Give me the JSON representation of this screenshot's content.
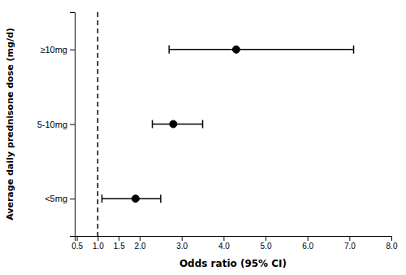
{
  "chart_data": {
    "type": "forest",
    "xlabel": "Odds ratio (95% CI)",
    "ylabel": "Average daily prednisone dose (mg/d)",
    "categories": [
      "≥10mg",
      "5-10mg",
      "<5mg"
    ],
    "values": [
      4.3,
      2.8,
      1.9
    ],
    "ci_lower": [
      2.7,
      2.3,
      1.1
    ],
    "ci_upper": [
      7.1,
      3.5,
      2.5
    ],
    "reference_line": 1.0,
    "color": "#000000",
    "xlim": [
      0.45,
      8.0
    ],
    "xticks": [
      0.5,
      {
        "value": 1.0,
        "label": "1.0"
      },
      1.5,
      {
        "value": 2.0,
        "label": "2.0"
      },
      {
        "value": 3.0,
        "label": "3.0"
      },
      {
        "value": 4.0,
        "label": "4.0"
      },
      {
        "value": 5.0,
        "label": "5.0"
      },
      {
        "value": 6.0,
        "label": "6.0"
      },
      {
        "value": 7.0,
        "label": "7.0"
      },
      {
        "value": 8.0,
        "label": "8.0"
      }
    ]
  }
}
